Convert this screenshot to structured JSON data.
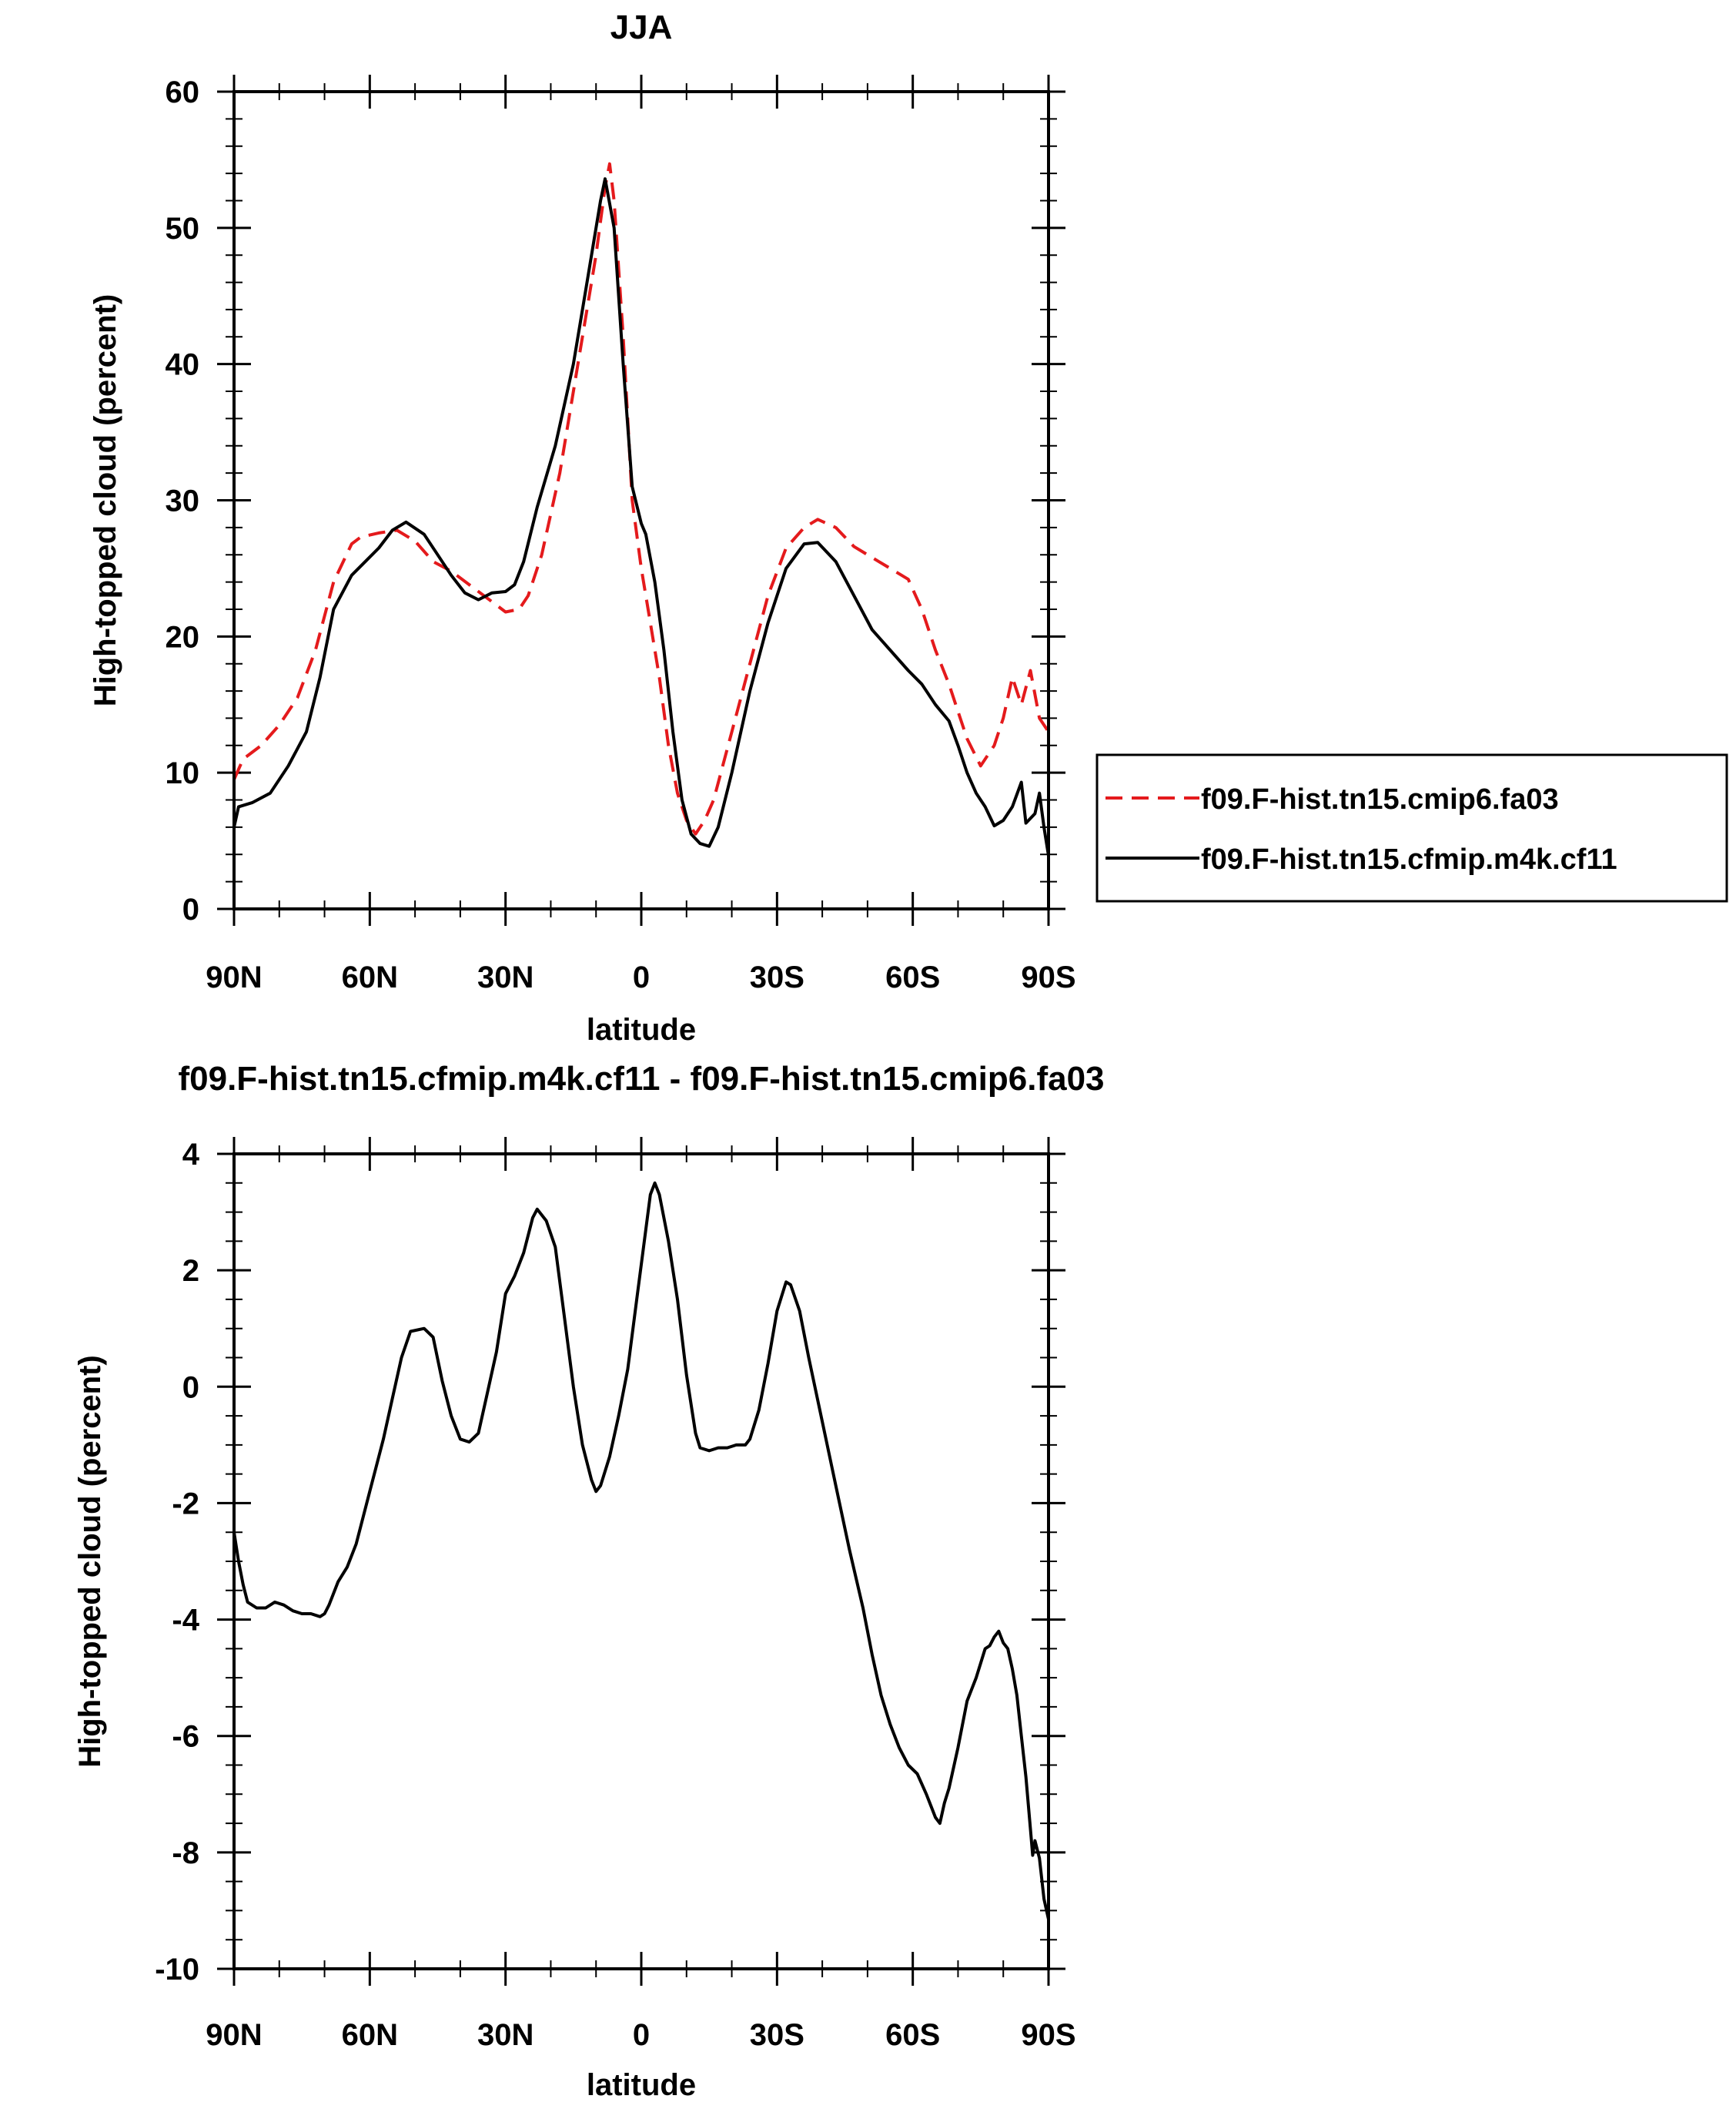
{
  "chart_data": [
    {
      "type": "line",
      "title": "JJA",
      "xlabel": "latitude",
      "ylabel": "High-topped cloud (percent)",
      "xlim": [
        90,
        -90
      ],
      "ylim": [
        0,
        60
      ],
      "yticks": [
        0,
        10,
        20,
        30,
        40,
        50,
        60
      ],
      "xticks": [
        90,
        60,
        30,
        0,
        -30,
        -60,
        -90
      ],
      "xtick_labels": [
        "90N",
        "60N",
        "30N",
        "0",
        "30S",
        "60S",
        "90S"
      ],
      "legend": "right",
      "series": [
        {
          "name": "f09.F-hist.tn15.cmip6.fa03",
          "color": "#e41a1c",
          "dash": "dashed",
          "points": [
            [
              90,
              9.5
            ],
            [
              88,
              11
            ],
            [
              84,
              12
            ],
            [
              80,
              13.5
            ],
            [
              76,
              15.5
            ],
            [
              72,
              19
            ],
            [
              68,
              24
            ],
            [
              64,
              26.8
            ],
            [
              62,
              27.3
            ],
            [
              58,
              27.6
            ],
            [
              54,
              27.8
            ],
            [
              50,
              27
            ],
            [
              46,
              25.5
            ],
            [
              42,
              24.8
            ],
            [
              38,
              23.8
            ],
            [
              34,
              22.8
            ],
            [
              30,
              21.8
            ],
            [
              27,
              22
            ],
            [
              25,
              23
            ],
            [
              22,
              26
            ],
            [
              18,
              32
            ],
            [
              14,
              40
            ],
            [
              10,
              48
            ],
            [
              8,
              53
            ],
            [
              7,
              54.7
            ],
            [
              6,
              52
            ],
            [
              4,
              42
            ],
            [
              2,
              30
            ],
            [
              0,
              25
            ],
            [
              -2,
              21
            ],
            [
              -4,
              17
            ],
            [
              -6,
              12
            ],
            [
              -8,
              8.5
            ],
            [
              -10,
              6.5
            ],
            [
              -12,
              5.5
            ],
            [
              -14,
              6.5
            ],
            [
              -16,
              8
            ],
            [
              -20,
              13
            ],
            [
              -24,
              18
            ],
            [
              -28,
              23
            ],
            [
              -32,
              26.5
            ],
            [
              -36,
              28
            ],
            [
              -39,
              28.6
            ],
            [
              -43,
              28
            ],
            [
              -47,
              26.6
            ],
            [
              -51,
              25.8
            ],
            [
              -55,
              25
            ],
            [
              -59,
              24.2
            ],
            [
              -62,
              22
            ],
            [
              -65,
              19
            ],
            [
              -68,
              16.5
            ],
            [
              -70,
              14.5
            ],
            [
              -72,
              12.5
            ],
            [
              -75,
              10.5
            ],
            [
              -78,
              12
            ],
            [
              -80,
              14
            ],
            [
              -82,
              17
            ],
            [
              -84,
              15
            ],
            [
              -86,
              17.5
            ],
            [
              -88,
              14
            ],
            [
              -90,
              13
            ]
          ]
        },
        {
          "name": "f09.F-hist.tn15.cfmip.m4k.cf11",
          "color": "#000000",
          "dash": "solid",
          "points": [
            [
              90,
              6
            ],
            [
              89,
              7.5
            ],
            [
              86,
              7.8
            ],
            [
              82,
              8.5
            ],
            [
              78,
              10.5
            ],
            [
              74,
              13
            ],
            [
              71,
              17
            ],
            [
              68,
              22
            ],
            [
              64,
              24.5
            ],
            [
              61,
              25.5
            ],
            [
              58,
              26.5
            ],
            [
              55,
              27.8
            ],
            [
              52,
              28.4
            ],
            [
              48,
              27.5
            ],
            [
              45,
              26
            ],
            [
              42,
              24.5
            ],
            [
              39,
              23.2
            ],
            [
              36,
              22.7
            ],
            [
              33,
              23.2
            ],
            [
              30,
              23.3
            ],
            [
              28,
              23.8
            ],
            [
              26,
              25.5
            ],
            [
              23,
              29.5
            ],
            [
              19,
              34
            ],
            [
              15,
              40
            ],
            [
              12,
              46
            ],
            [
              9,
              52
            ],
            [
              8,
              53.6
            ],
            [
              6,
              50
            ],
            [
              4,
              40
            ],
            [
              2,
              31
            ],
            [
              0,
              28.3
            ],
            [
              -1,
              27.5
            ],
            [
              -3,
              24
            ],
            [
              -5,
              19
            ],
            [
              -7,
              13
            ],
            [
              -9,
              8
            ],
            [
              -11,
              5.5
            ],
            [
              -13,
              4.8
            ],
            [
              -15,
              4.6
            ],
            [
              -17,
              6
            ],
            [
              -20,
              10
            ],
            [
              -24,
              16
            ],
            [
              -28,
              21
            ],
            [
              -32,
              25
            ],
            [
              -36,
              26.8
            ],
            [
              -39,
              26.9
            ],
            [
              -43,
              25.5
            ],
            [
              -47,
              23
            ],
            [
              -51,
              20.5
            ],
            [
              -55,
              19
            ],
            [
              -59,
              17.5
            ],
            [
              -62,
              16.5
            ],
            [
              -65,
              15
            ],
            [
              -68,
              13.8
            ],
            [
              -70,
              12
            ],
            [
              -72,
              10
            ],
            [
              -74,
              8.5
            ],
            [
              -76,
              7.5
            ],
            [
              -78,
              6.1
            ],
            [
              -80,
              6.5
            ],
            [
              -82,
              7.5
            ],
            [
              -84,
              9.3
            ],
            [
              -85,
              6.3
            ],
            [
              -87,
              7
            ],
            [
              -88,
              8.5
            ],
            [
              -89,
              6
            ],
            [
              -90,
              3.9
            ]
          ]
        }
      ]
    },
    {
      "type": "line",
      "title": "f09.F-hist.tn15.cfmip.m4k.cf11 - f09.F-hist.tn15.cmip6.fa03",
      "xlabel": "latitude",
      "ylabel": "High-topped cloud (percent)",
      "xlim": [
        90,
        -90
      ],
      "ylim": [
        -10,
        4
      ],
      "yticks": [
        -10,
        -8,
        -6,
        -4,
        -2,
        0,
        2,
        4
      ],
      "xticks": [
        90,
        60,
        30,
        0,
        -30,
        -60,
        -90
      ],
      "xtick_labels": [
        "90N",
        "60N",
        "30N",
        "0",
        "30S",
        "60S",
        "90S"
      ],
      "series": [
        {
          "color": "#000000",
          "dash": "solid",
          "points": [
            [
              90,
              -2.5
            ],
            [
              89,
              -3
            ],
            [
              88,
              -3.4
            ],
            [
              87,
              -3.7
            ],
            [
              85,
              -3.8
            ],
            [
              83,
              -3.8
            ],
            [
              81,
              -3.7
            ],
            [
              79,
              -3.75
            ],
            [
              77,
              -3.85
            ],
            [
              75,
              -3.9
            ],
            [
              73,
              -3.9
            ],
            [
              71,
              -3.95
            ],
            [
              70,
              -3.9
            ],
            [
              69,
              -3.75
            ],
            [
              67,
              -3.35
            ],
            [
              65,
              -3.1
            ],
            [
              63,
              -2.7
            ],
            [
              60,
              -1.8
            ],
            [
              57,
              -0.9
            ],
            [
              55,
              -0.2
            ],
            [
              53,
              0.5
            ],
            [
              51,
              0.95
            ],
            [
              48,
              1.0
            ],
            [
              46,
              0.85
            ],
            [
              44,
              0.1
            ],
            [
              42,
              -0.5
            ],
            [
              40,
              -0.9
            ],
            [
              38,
              -0.95
            ],
            [
              36,
              -0.8
            ],
            [
              34,
              -0.1
            ],
            [
              32,
              0.6
            ],
            [
              30,
              1.6
            ],
            [
              28,
              1.9
            ],
            [
              26,
              2.3
            ],
            [
              24,
              2.9
            ],
            [
              23,
              3.05
            ],
            [
              21,
              2.85
            ],
            [
              19,
              2.4
            ],
            [
              17,
              1.2
            ],
            [
              15,
              0
            ],
            [
              13,
              -1
            ],
            [
              11,
              -1.6
            ],
            [
              10,
              -1.8
            ],
            [
              9,
              -1.7
            ],
            [
              7,
              -1.2
            ],
            [
              5,
              -0.5
            ],
            [
              3,
              0.3
            ],
            [
              1,
              1.5
            ],
            [
              -1,
              2.7
            ],
            [
              -2,
              3.3
            ],
            [
              -3,
              3.5
            ],
            [
              -4,
              3.3
            ],
            [
              -6,
              2.5
            ],
            [
              -8,
              1.5
            ],
            [
              -10,
              0.2
            ],
            [
              -12,
              -0.8
            ],
            [
              -13,
              -1.05
            ],
            [
              -15,
              -1.1
            ],
            [
              -17,
              -1.05
            ],
            [
              -19,
              -1.05
            ],
            [
              -21,
              -1.0
            ],
            [
              -23,
              -1.0
            ],
            [
              -24,
              -0.9
            ],
            [
              -26,
              -0.4
            ],
            [
              -28,
              0.4
            ],
            [
              -30,
              1.3
            ],
            [
              -32,
              1.8
            ],
            [
              -33,
              1.75
            ],
            [
              -35,
              1.3
            ],
            [
              -37,
              0.5
            ],
            [
              -40,
              -0.6
            ],
            [
              -43,
              -1.7
            ],
            [
              -46,
              -2.8
            ],
            [
              -49,
              -3.8
            ],
            [
              -51,
              -4.6
            ],
            [
              -53,
              -5.3
            ],
            [
              -55,
              -5.8
            ],
            [
              -57,
              -6.2
            ],
            [
              -59,
              -6.5
            ],
            [
              -61,
              -6.65
            ],
            [
              -63,
              -7
            ],
            [
              -64,
              -7.2
            ],
            [
              -65,
              -7.4
            ],
            [
              -66,
              -7.5
            ],
            [
              -67,
              -7.15
            ],
            [
              -68,
              -6.9
            ],
            [
              -70,
              -6.2
            ],
            [
              -72,
              -5.4
            ],
            [
              -74,
              -5
            ],
            [
              -76,
              -4.5
            ],
            [
              -77,
              -4.45
            ],
            [
              -78,
              -4.3
            ],
            [
              -79,
              -4.2
            ],
            [
              -80,
              -4.4
            ],
            [
              -81,
              -4.5
            ],
            [
              -82,
              -4.85
            ],
            [
              -83,
              -5.3
            ],
            [
              -84,
              -6
            ],
            [
              -85,
              -6.7
            ],
            [
              -86,
              -7.6
            ],
            [
              -86.5,
              -8.05
            ],
            [
              -87,
              -7.8
            ],
            [
              -88,
              -8.1
            ],
            [
              -89,
              -8.8
            ],
            [
              -90,
              -9.15
            ]
          ]
        }
      ]
    }
  ]
}
